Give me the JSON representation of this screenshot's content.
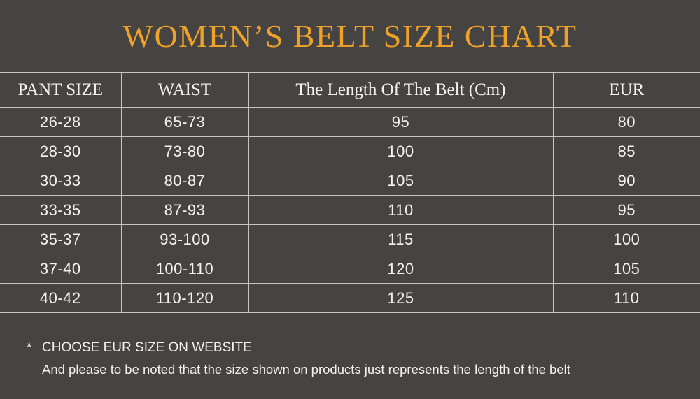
{
  "page_title": "WOMEN’S BELT SIZE CHART",
  "chart_data": {
    "type": "table",
    "title": "WOMEN’S BELT SIZE CHART",
    "columns": [
      "PANT SIZE",
      "WAIST",
      "The Length Of The Belt (Cm)",
      "EUR"
    ],
    "rows": [
      [
        "26-28",
        "65-73",
        "95",
        "80"
      ],
      [
        "28-30",
        "73-80",
        "100",
        "85"
      ],
      [
        "30-33",
        "80-87",
        "105",
        "90"
      ],
      [
        "33-35",
        "87-93",
        "110",
        "95"
      ],
      [
        "35-37",
        "93-100",
        "115",
        "100"
      ],
      [
        "37-40",
        "100-110",
        "120",
        "105"
      ],
      [
        "40-42",
        "110-120",
        "125",
        "110"
      ]
    ],
    "notes": [
      "CHOOSE EUR SIZE ON WEBSITE",
      "And please to be noted that the size shown on products just represents the length of the belt"
    ]
  },
  "footnotes": {
    "marker": "*",
    "line1": "CHOOSE EUR SIZE ON WEBSITE",
    "line2": "And please to be noted that the size shown on products just represents the length of the belt"
  },
  "colors": {
    "background": "#464343",
    "accent": "#F0A228",
    "text": "#F3F2F1",
    "border": "#C6C5C4"
  }
}
